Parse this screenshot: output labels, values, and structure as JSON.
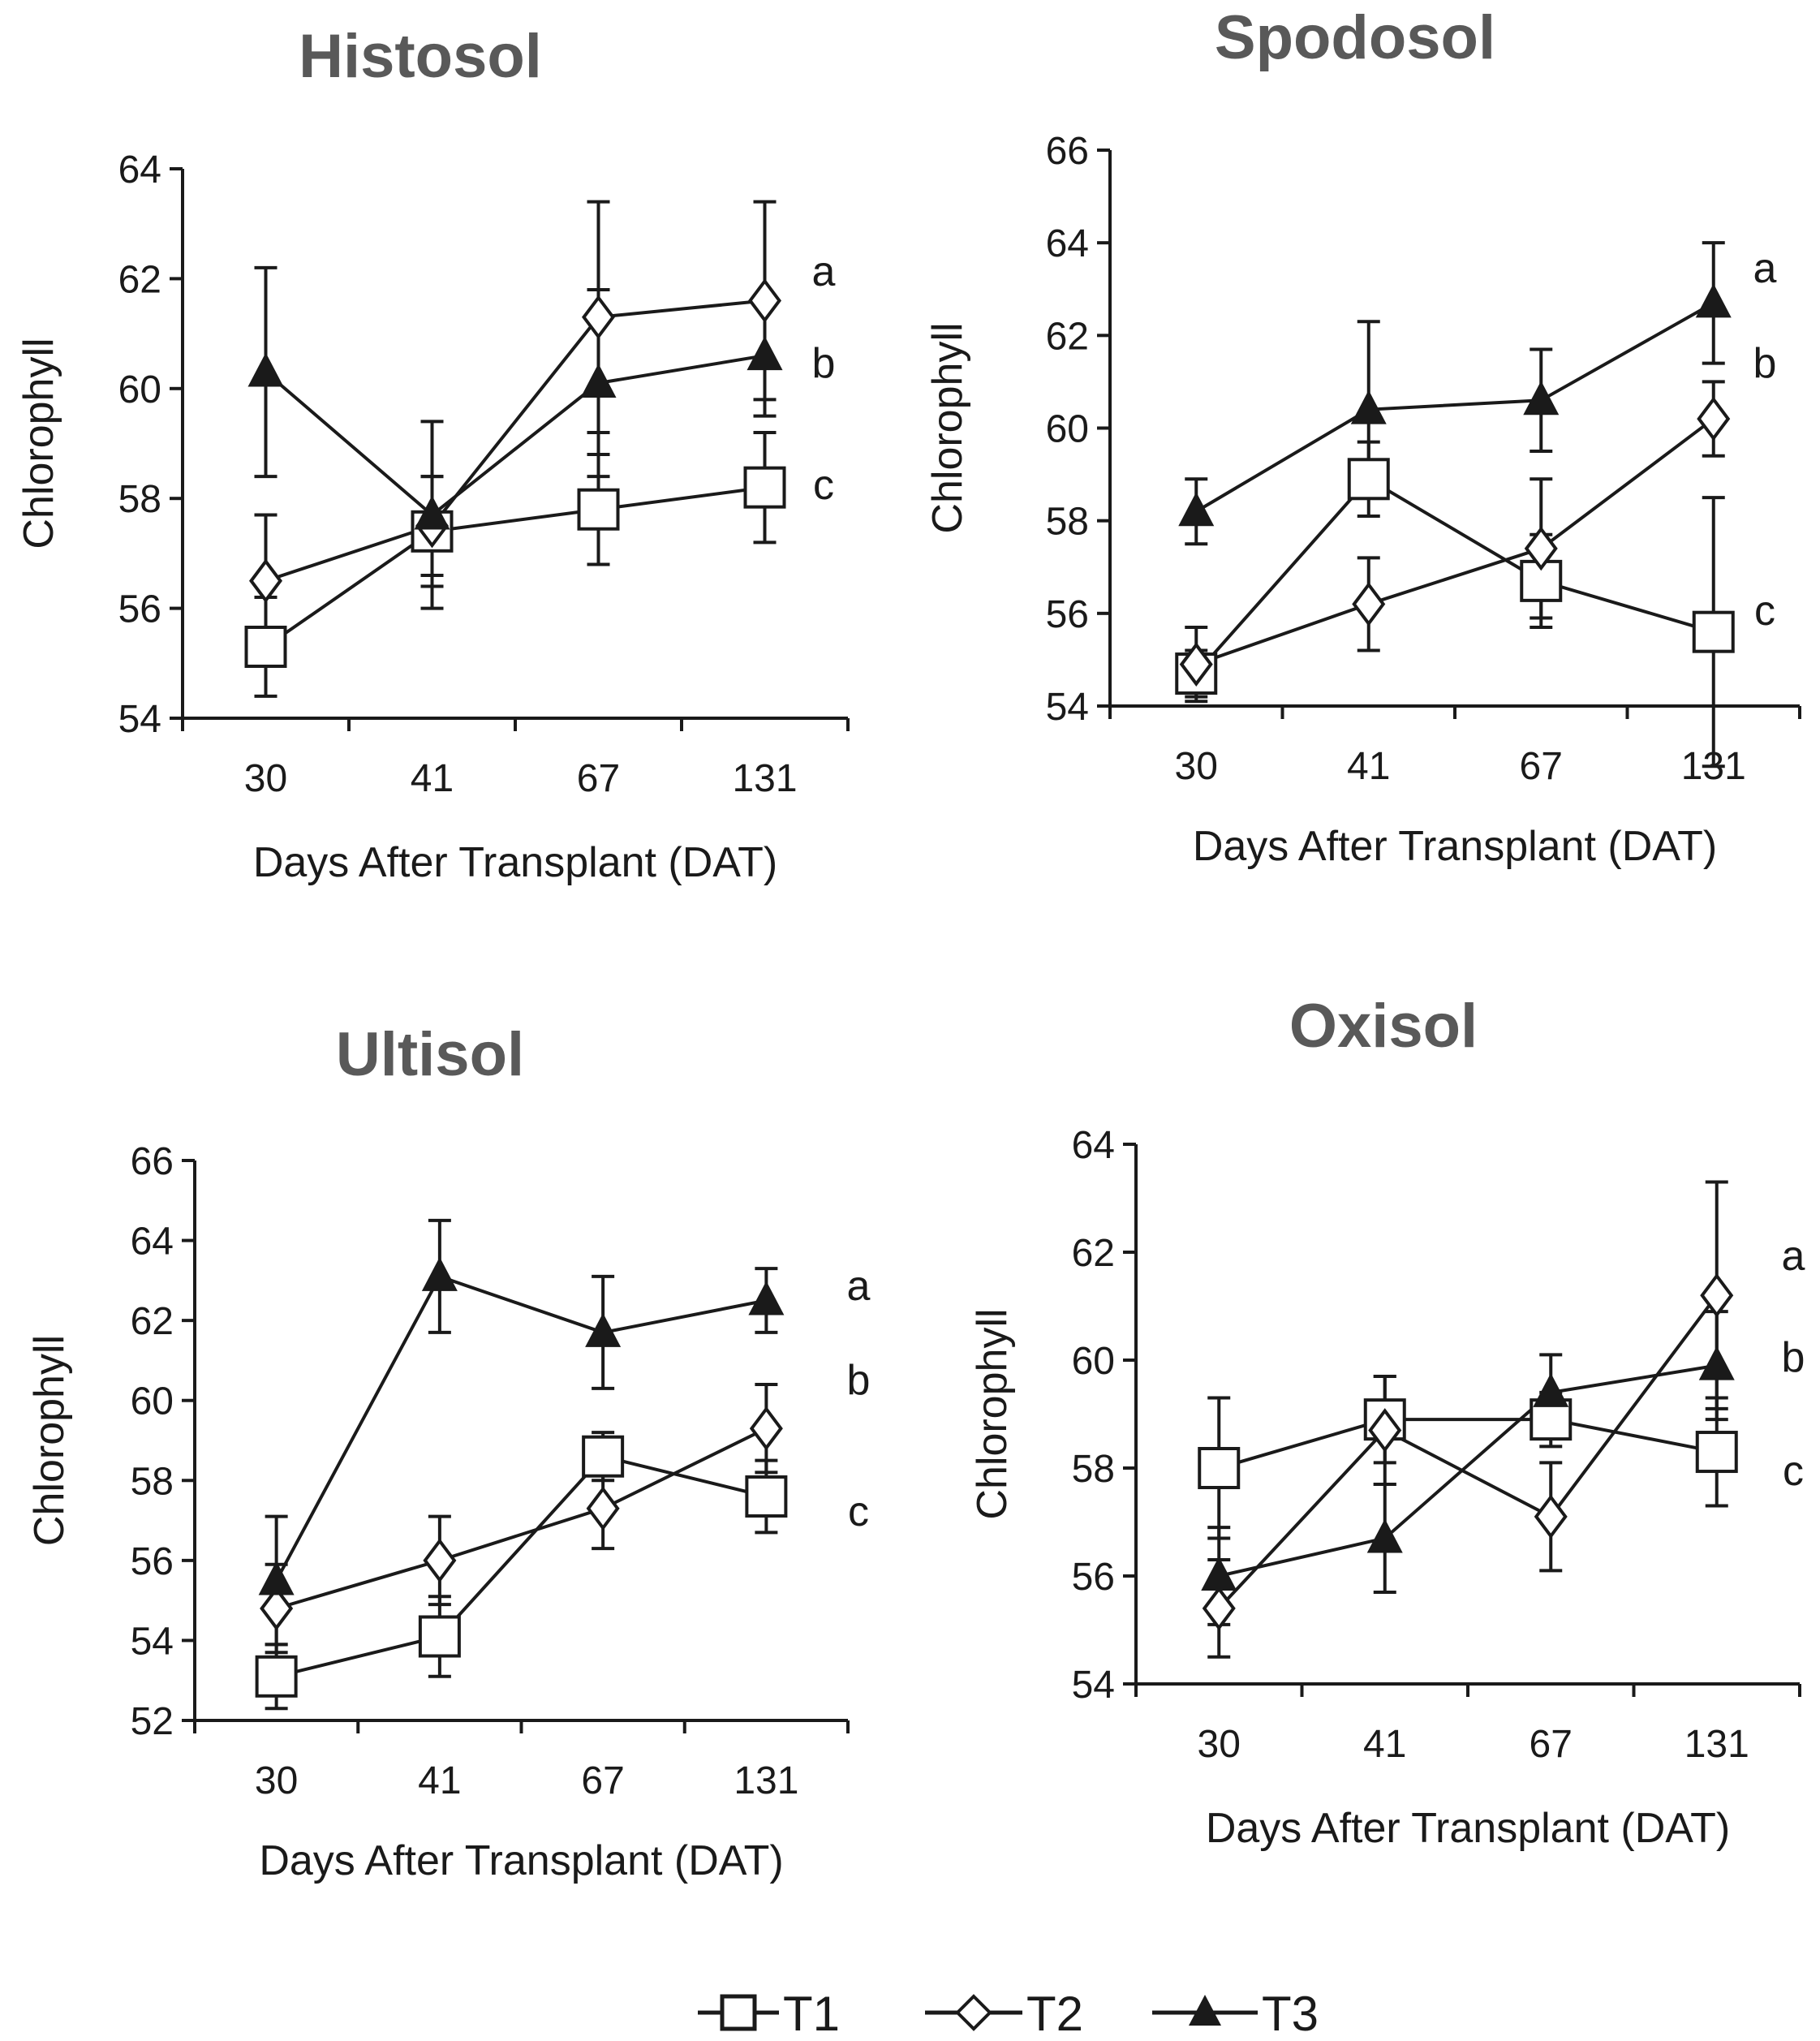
{
  "chart_data": [
    {
      "type": "line",
      "title": "Histosol",
      "xlabel": "Days After Transplant (DAT)",
      "ylabel": "Chlorophyll",
      "categories": [
        "30",
        "41",
        "67",
        "131"
      ],
      "ylim": [
        54,
        64
      ],
      "yticks": [
        "54",
        "56",
        "58",
        "60",
        "62",
        "64"
      ],
      "series": [
        {
          "name": "T1",
          "values": [
            55.3,
            57.4,
            57.8,
            58.2
          ],
          "errors": [
            0.9,
            1.0,
            1.0,
            1.0
          ]
        },
        {
          "name": "T2",
          "values": [
            56.5,
            57.5,
            61.3,
            61.6
          ],
          "errors": [
            1.2,
            0.9,
            2.1,
            1.8
          ]
        },
        {
          "name": "T3",
          "values": [
            60.3,
            57.7,
            60.1,
            60.6
          ],
          "errors": [
            1.9,
            1.7,
            1.7,
            1.1
          ]
        }
      ],
      "annotations": [
        "a",
        "b",
        "c"
      ]
    },
    {
      "type": "line",
      "title": "Spodosol",
      "xlabel": "Days After Transplant (DAT)",
      "ylabel": "Chlorophyll",
      "categories": [
        "30",
        "41",
        "67",
        "131"
      ],
      "ylim": [
        54,
        66
      ],
      "yticks": [
        "54",
        "56",
        "58",
        "60",
        "62",
        "64",
        "66"
      ],
      "series": [
        {
          "name": "T1",
          "values": [
            54.7,
            58.9,
            56.7,
            55.6
          ],
          "errors": [
            0.5,
            0.8,
            1.0,
            2.9
          ]
        },
        {
          "name": "T2",
          "values": [
            54.9,
            56.2,
            57.4,
            60.2
          ],
          "errors": [
            0.8,
            1.0,
            1.5,
            0.8
          ]
        },
        {
          "name": "T3",
          "values": [
            58.2,
            60.4,
            60.6,
            62.7
          ],
          "errors": [
            0.7,
            1.9,
            1.1,
            1.3
          ]
        }
      ],
      "annotations": [
        "a",
        "b",
        "c"
      ]
    },
    {
      "type": "line",
      "title": "Ultisol",
      "xlabel": "Days After Transplant (DAT)",
      "ylabel": "Chlorophyll",
      "categories": [
        "30",
        "41",
        "67",
        "131"
      ],
      "ylim": [
        52,
        66
      ],
      "yticks": [
        "52",
        "54",
        "56",
        "58",
        "60",
        "62",
        "64",
        "66"
      ],
      "series": [
        {
          "name": "T1",
          "values": [
            53.1,
            54.1,
            58.6,
            57.6
          ],
          "errors": [
            0.8,
            1.0,
            0.6,
            0.9
          ]
        },
        {
          "name": "T2",
          "values": [
            54.8,
            56.0,
            57.3,
            59.3
          ],
          "errors": [
            1.1,
            1.1,
            1.0,
            1.1
          ]
        },
        {
          "name": "T3",
          "values": [
            55.5,
            63.1,
            61.7,
            62.5
          ],
          "errors": [
            1.6,
            1.4,
            1.4,
            0.8
          ]
        }
      ],
      "annotations": [
        "a",
        "b",
        "c"
      ]
    },
    {
      "type": "line",
      "title": "Oxisol",
      "xlabel": "Days After Transplant (DAT)",
      "ylabel": "Chlorophyll",
      "categories": [
        "30",
        "41",
        "67",
        "131"
      ],
      "ylim": [
        54,
        64
      ],
      "yticks": [
        "54",
        "56",
        "58",
        "60",
        "62",
        "64"
      ],
      "series": [
        {
          "name": "T1",
          "values": [
            58.0,
            58.9,
            58.9,
            58.3
          ],
          "errors": [
            1.3,
            0.8,
            0.5,
            1.0
          ]
        },
        {
          "name": "T2",
          "values": [
            55.4,
            58.7,
            57.1,
            61.2
          ],
          "errors": [
            0.9,
            1.0,
            1.0,
            2.1
          ]
        },
        {
          "name": "T3",
          "values": [
            56.0,
            56.7,
            59.4,
            59.9
          ],
          "errors": [
            0.9,
            1.0,
            0.7,
            1.0
          ]
        }
      ],
      "annotations": [
        "a",
        "b",
        "c"
      ]
    }
  ],
  "legend": [
    "T1",
    "T2",
    "T3"
  ],
  "colors": {
    "line": "#1a1a1a",
    "title": "#595959",
    "marker_fill": "#ffffff"
  }
}
